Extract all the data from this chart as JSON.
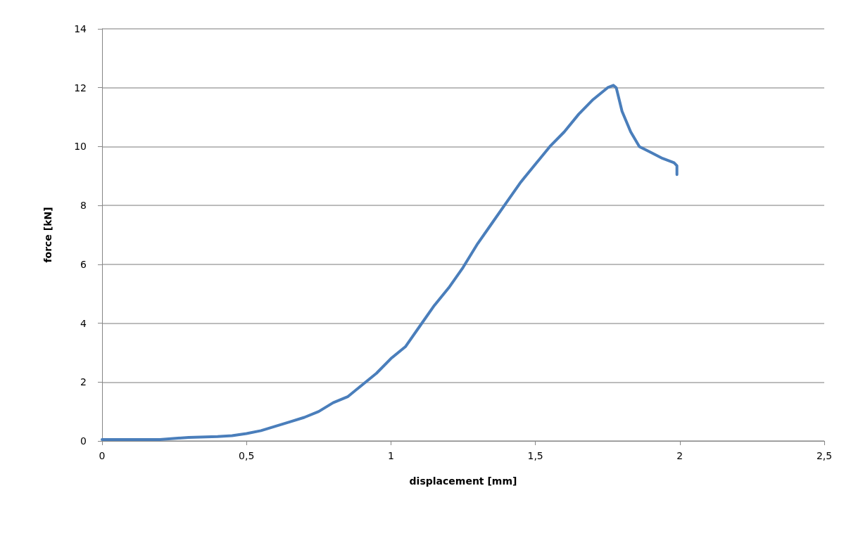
{
  "chart_data": {
    "type": "line",
    "xlabel": "displacement [mm]",
    "ylabel": "force [kN]",
    "x": [
      0,
      0.1,
      0.2,
      0.3,
      0.4,
      0.45,
      0.5,
      0.55,
      0.6,
      0.65,
      0.7,
      0.75,
      0.8,
      0.85,
      0.9,
      0.95,
      1.0,
      1.05,
      1.1,
      1.15,
      1.2,
      1.25,
      1.3,
      1.35,
      1.4,
      1.45,
      1.5,
      1.55,
      1.6,
      1.65,
      1.7,
      1.75,
      1.77,
      1.78,
      1.8,
      1.83,
      1.86,
      1.9,
      1.94,
      1.98,
      1.99,
      1.99
    ],
    "series": [
      {
        "color": "#4a7ebb",
        "values": [
          0.05,
          0.05,
          0.05,
          0.12,
          0.15,
          0.18,
          0.25,
          0.35,
          0.5,
          0.65,
          0.8,
          1.0,
          1.3,
          1.5,
          1.9,
          2.3,
          2.8,
          3.2,
          3.9,
          4.6,
          5.2,
          5.9,
          6.7,
          7.4,
          8.1,
          8.8,
          9.4,
          10.0,
          10.5,
          11.1,
          11.6,
          12.0,
          12.08,
          12.0,
          11.2,
          10.5,
          10.0,
          9.8,
          9.6,
          9.45,
          9.35,
          9.05
        ]
      }
    ],
    "xlim": [
      0,
      2.5
    ],
    "xticks": [
      0,
      {
        "value": 0.5,
        "label": "0,5"
      },
      1,
      {
        "value": 1.5,
        "label": "1,5"
      },
      2,
      {
        "value": 2.5,
        "label": "2,5"
      }
    ],
    "ylim": [
      0,
      14
    ],
    "yticks": [
      0,
      2,
      4,
      6,
      8,
      10,
      12,
      14
    ],
    "grid": "y",
    "marker": "none",
    "line_style": "solid"
  }
}
